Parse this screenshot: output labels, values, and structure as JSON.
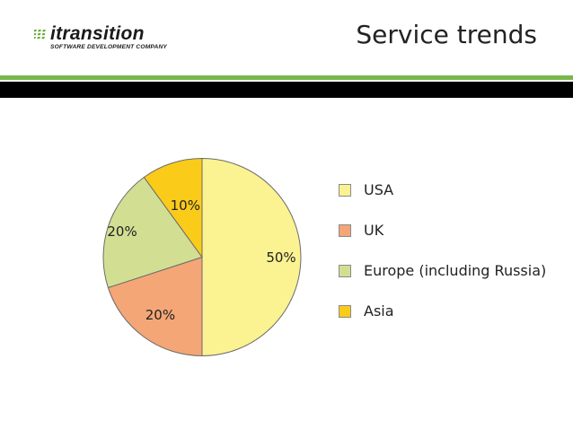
{
  "header": {
    "logo_text": "itransition",
    "logo_tagline": "SOFTWARE DEVELOPMENT COMPANY",
    "title": "Service trends"
  },
  "colors": {
    "accent_green": "#78b84a",
    "band_black": "#000000"
  },
  "chart_data": {
    "type": "pie",
    "title": "",
    "slices": [
      {
        "name": "USA",
        "value": 50,
        "label": "50%",
        "color": "#fbf291"
      },
      {
        "name": "UK",
        "value": 20,
        "label": "20%",
        "color": "#f4a677"
      },
      {
        "name": "Europe (including Russia)",
        "value": 20,
        "label": "20%",
        "color": "#d2df93"
      },
      {
        "name": "Asia",
        "value": 10,
        "label": "10%",
        "color": "#fbcb1a"
      }
    ],
    "legend_placement": "right",
    "start_angle": "top",
    "direction": "clockwise"
  }
}
